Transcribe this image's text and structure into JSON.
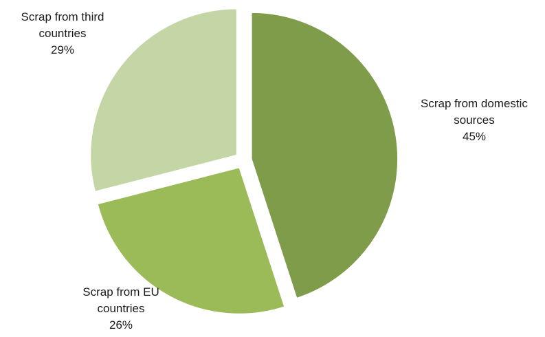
{
  "chart_data": {
    "type": "pie",
    "slices": [
      {
        "label_lines": [
          "Scrap from domestic",
          "sources"
        ],
        "value": 45,
        "value_label": "45%",
        "color": "#7f9c4b"
      },
      {
        "label_lines": [
          "Scrap from EU",
          "countries"
        ],
        "value": 26,
        "value_label": "26%",
        "color": "#9bbb59"
      },
      {
        "label_lines": [
          "Scrap from third",
          "countries"
        ],
        "value": 29,
        "value_label": "29%",
        "color": "#c4d6a6"
      }
    ]
  }
}
